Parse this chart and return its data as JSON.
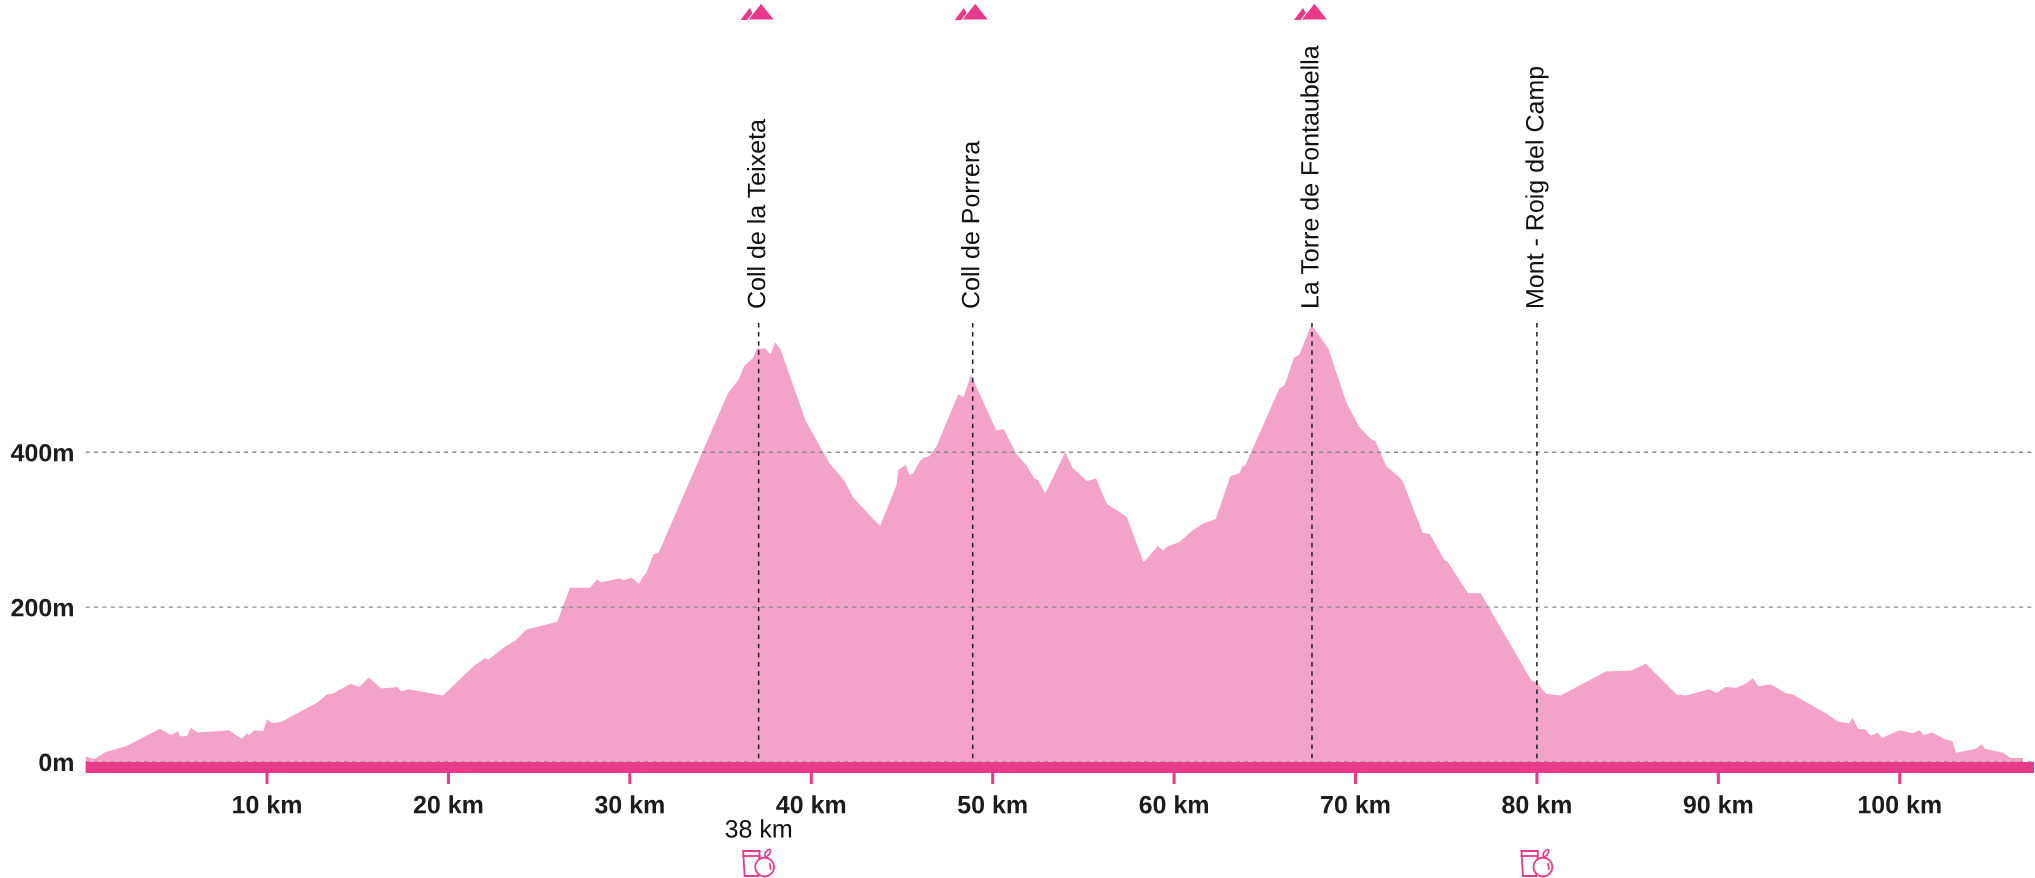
{
  "chart_data": {
    "type": "area",
    "x": [
      0.0,
      0.5,
      1.1,
      2.2,
      4.1,
      4.7,
      5.1,
      5.2,
      5.6,
      5.8,
      6.2,
      7.9,
      8.6,
      8.9,
      9.0,
      9.3,
      9.8,
      10.0,
      10.3,
      10.8,
      12.8,
      13.3,
      13.6,
      14.6,
      15.1,
      15.6,
      16.3,
      17.2,
      17.4,
      17.8,
      19.7,
      21.4,
      22.0,
      22.2,
      23.0,
      23.7,
      24.3,
      26.0,
      26.7,
      27.8,
      28.2,
      28.4,
      29.4,
      29.7,
      30.1,
      30.5,
      30.7,
      30.9,
      31.3,
      31.6,
      35.4,
      36.0,
      36.3,
      36.8,
      37.0,
      37.5,
      37.7,
      37.8,
      38.0,
      38.3,
      39.7,
      41.0,
      41.8,
      42.3,
      43.2,
      43.8,
      44.7,
      44.8,
      45.2,
      45.4,
      45.6,
      46.0,
      46.2,
      46.5,
      46.9,
      48.1,
      48.4,
      48.8,
      50.2,
      50.6,
      51.3,
      51.9,
      52.3,
      52.5,
      52.9,
      54.0,
      54.4,
      55.2,
      55.7,
      56.3,
      56.8,
      57.4,
      58.3,
      58.4,
      59.1,
      59.4,
      59.6,
      60.3,
      60.9,
      61.6,
      62.3,
      63.1,
      63.6,
      63.8,
      63.9,
      65.8,
      66.1,
      66.6,
      66.9,
      67.5,
      67.7,
      68.5,
      69.5,
      70.2,
      70.8,
      71.1,
      71.7,
      72.4,
      72.6,
      73.7,
      74.1,
      74.9,
      75.1,
      76.2,
      76.9,
      79.7,
      80.0,
      80.5,
      81.3,
      83.8,
      85.2,
      86.0,
      87.7,
      88.2,
      89.5,
      89.9,
      90.4,
      91.0,
      91.5,
      91.9,
      92.2,
      92.9,
      93.7,
      94.1,
      96.0,
      96.6,
      97.2,
      97.4,
      97.7,
      98.1,
      98.4,
      98.8,
      99.0,
      100.0,
      100.7,
      101.1,
      101.3,
      101.8,
      102.5,
      102.9,
      103.1,
      104.2,
      104.5,
      104.7,
      105.7,
      106.1,
      106.8
    ],
    "values": [
      7,
      4,
      13,
      20,
      43,
      35,
      40,
      33,
      34,
      44,
      38,
      41,
      30,
      37,
      35,
      41,
      40,
      55,
      50,
      52,
      77,
      87,
      88,
      101,
      97,
      109,
      95,
      97,
      91,
      94,
      86,
      124,
      134,
      132,
      147,
      157,
      171,
      181,
      225,
      225,
      236,
      232,
      237,
      235,
      238,
      230,
      239,
      244,
      268,
      271,
      476,
      494,
      511,
      522,
      534,
      534,
      527,
      529,
      542,
      533,
      440,
      386,
      364,
      342,
      319,
      305,
      358,
      377,
      384,
      371,
      372,
      389,
      393,
      395,
      407,
      475,
      471,
      500,
      428,
      430,
      398,
      382,
      366,
      364,
      347,
      400,
      380,
      363,
      366,
      333,
      326,
      316,
      259,
      260,
      279,
      273,
      278,
      284,
      297,
      308,
      314,
      369,
      373,
      383,
      382,
      482,
      487,
      522,
      526,
      561,
      561,
      534,
      464,
      433,
      418,
      414,
      382,
      368,
      363,
      296,
      294,
      261,
      258,
      218,
      218,
      105,
      103,
      88,
      86,
      117,
      118,
      127,
      87,
      86,
      94,
      89,
      97,
      96,
      101,
      108,
      98,
      100,
      89,
      87,
      62,
      52,
      50,
      57,
      43,
      42,
      34,
      38,
      31,
      41,
      37,
      41,
      35,
      38,
      29,
      27,
      12,
      17,
      23,
      17,
      12,
      5,
      5
    ],
    "color": "#f3a3c8",
    "xlim": [
      0,
      107.4
    ],
    "xticks": [
      {
        "value": 10,
        "label": "10 km"
      },
      {
        "value": 20,
        "label": "20 km"
      },
      {
        "value": 30,
        "label": "30 km"
      },
      {
        "value": 40,
        "label": "40 km"
      },
      {
        "value": 50,
        "label": "50 km"
      },
      {
        "value": 60,
        "label": "60 km"
      },
      {
        "value": 70,
        "label": "70 km"
      },
      {
        "value": 80,
        "label": "80 km"
      },
      {
        "value": 90,
        "label": "90 km"
      },
      {
        "value": 100,
        "label": "100 km"
      }
    ],
    "ylim": [
      -7,
      567
    ],
    "yticks": [
      {
        "value": 0,
        "label": "0m"
      },
      {
        "value": 200,
        "label": "200m"
      },
      {
        "value": 400,
        "label": "400m"
      }
    ],
    "grid": "y",
    "ref_lines": [
      {
        "axis": "x",
        "value": 37.1,
        "label": "Coll de la Teixeta",
        "color": "#222222",
        "line_style": "dashed"
      },
      {
        "axis": "x",
        "value": 48.9,
        "label": "Coll de Porrera",
        "color": "#222222",
        "line_style": "dashed"
      },
      {
        "axis": "x",
        "value": 67.6,
        "label": "La Torre de Fontaubella",
        "color": "#222222",
        "line_style": "dashed"
      },
      {
        "axis": "x",
        "value": 80.0,
        "label": "Mont - Roig del Camp",
        "color": "#222222",
        "line_style": "dashed"
      }
    ],
    "annotations": [
      "38 km"
    ]
  }
}
